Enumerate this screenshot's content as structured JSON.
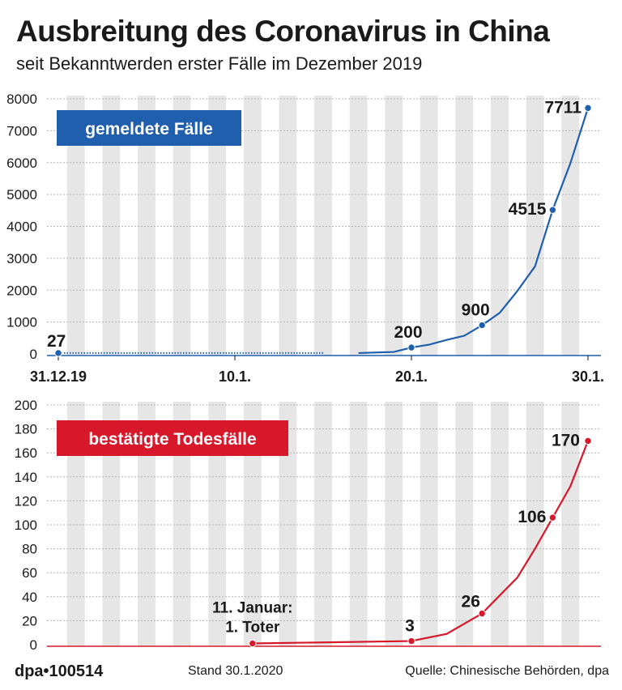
{
  "header": {
    "title": "Ausbreitung des Coronavirus in China",
    "subtitle": "seit Bekanntwerden erster Fälle im Dezember 2019"
  },
  "footer": {
    "logo": "dpa•100514",
    "stand": "Stand 30.1.2020",
    "source": "Quelle: Chinesische Behörden, dpa"
  },
  "colors": {
    "cases": "#1f5fad",
    "deaths": "#d7182a",
    "stripe": "#e6e6e6",
    "grid": "#b3b3b3"
  },
  "chart_data": [
    {
      "type": "line",
      "label": "gemeldete Fälle",
      "x_ticks": [
        "31.12.19",
        "10.1.",
        "20.1.",
        "30.1."
      ],
      "yticks": [
        0,
        1000,
        2000,
        3000,
        4000,
        5000,
        6000,
        7000,
        8000
      ],
      "ylim": [
        0,
        8000
      ],
      "grid": true,
      "series": [
        {
          "points": [
            {
              "x": "2019-12-31",
              "y": 27,
              "label": "27"
            },
            {
              "x": "2020-01-18",
              "y": 45
            },
            {
              "x": "2020-01-19",
              "y": 62
            },
            {
              "x": "2020-01-20",
              "y": 200,
              "label": "200"
            },
            {
              "x": "2020-01-21",
              "y": 291
            },
            {
              "x": "2020-01-22",
              "y": 440
            },
            {
              "x": "2020-01-23",
              "y": 571
            },
            {
              "x": "2020-01-24",
              "y": 900,
              "label": "900"
            },
            {
              "x": "2020-01-25",
              "y": 1287
            },
            {
              "x": "2020-01-26",
              "y": 1975
            },
            {
              "x": "2020-01-27",
              "y": 2744
            },
            {
              "x": "2020-01-28",
              "y": 4515,
              "label": "4515"
            },
            {
              "x": "2020-01-29",
              "y": 5974
            },
            {
              "x": "2020-01-30",
              "y": 7711,
              "label": "7711"
            }
          ]
        }
      ]
    },
    {
      "type": "line",
      "label": "bestätigte Todesfälle",
      "x_ticks": [],
      "yticks": [
        0,
        20,
        40,
        60,
        80,
        100,
        120,
        140,
        160,
        180,
        200
      ],
      "ylim": [
        0,
        200
      ],
      "grid": true,
      "annotation": "11. Januar: 1. Toter",
      "series": [
        {
          "points": [
            {
              "x": "2020-01-11",
              "y": 1
            },
            {
              "x": "2020-01-20",
              "y": 3,
              "label": "3"
            },
            {
              "x": "2020-01-22",
              "y": 9
            },
            {
              "x": "2020-01-24",
              "y": 26,
              "label": "26"
            },
            {
              "x": "2020-01-25",
              "y": 41
            },
            {
              "x": "2020-01-26",
              "y": 56
            },
            {
              "x": "2020-01-27",
              "y": 80
            },
            {
              "x": "2020-01-28",
              "y": 106,
              "label": "106"
            },
            {
              "x": "2020-01-29",
              "y": 132
            },
            {
              "x": "2020-01-30",
              "y": 170,
              "label": "170"
            }
          ]
        }
      ]
    }
  ]
}
